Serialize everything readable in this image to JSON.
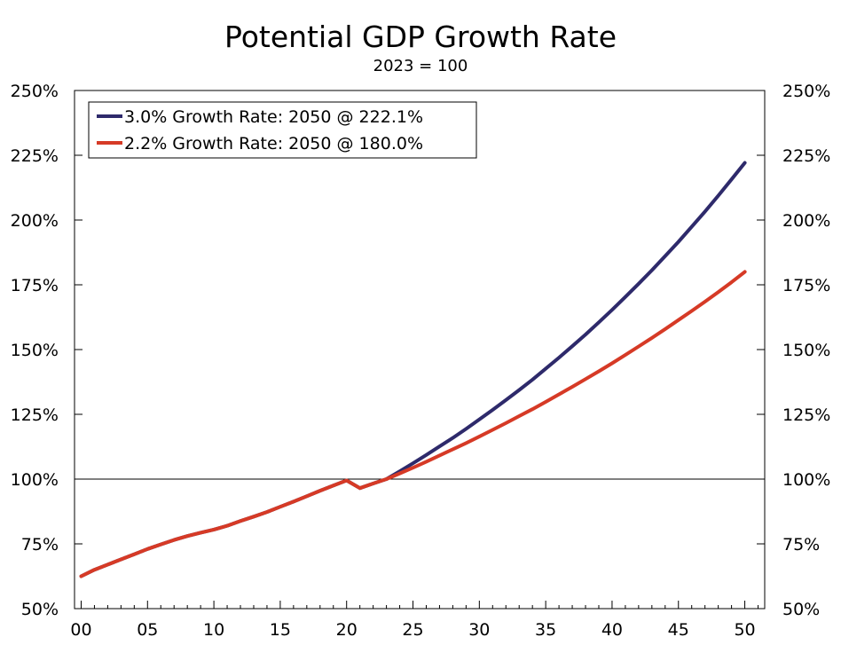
{
  "chart_data": {
    "type": "line",
    "title": "Potential GDP Growth Rate",
    "subtitle": "2023 = 100",
    "xlabel": "",
    "ylabel": "",
    "x_tick_labels": [
      "00",
      "05",
      "10",
      "15",
      "20",
      "25",
      "30",
      "35",
      "40",
      "45",
      "50"
    ],
    "x_ticks": [
      2000,
      2005,
      2010,
      2015,
      2020,
      2025,
      2030,
      2035,
      2040,
      2045,
      2050
    ],
    "xlim": [
      1999.5,
      2051.5
    ],
    "ylim": [
      50,
      250
    ],
    "y_ticks": [
      50,
      75,
      100,
      125,
      150,
      175,
      200,
      225,
      250
    ],
    "y_tick_labels": [
      "50%",
      "75%",
      "100%",
      "125%",
      "150%",
      "175%",
      "200%",
      "225%",
      "250%"
    ],
    "y_axis_both_sides": true,
    "reference_line": 100,
    "grid": false,
    "legend_position": "top-left",
    "series": [
      {
        "name": "3.0% Growth Rate: 2050 @ 222.1%",
        "color": "#2e2a6b",
        "x": [
          2000,
          2001,
          2002,
          2003,
          2004,
          2005,
          2006,
          2007,
          2008,
          2009,
          2010,
          2011,
          2012,
          2013,
          2014,
          2015,
          2016,
          2017,
          2018,
          2019,
          2020,
          2021,
          2022,
          2023,
          2024,
          2025,
          2026,
          2027,
          2028,
          2029,
          2030,
          2031,
          2032,
          2033,
          2034,
          2035,
          2036,
          2037,
          2038,
          2039,
          2040,
          2041,
          2042,
          2043,
          2044,
          2045,
          2046,
          2047,
          2048,
          2049,
          2050
        ],
        "values": [
          62.5,
          65,
          67,
          69,
          71,
          73,
          74.8,
          76.5,
          78,
          79.3,
          80.5,
          82,
          83.8,
          85.5,
          87.3,
          89.3,
          91.3,
          93.4,
          95.5,
          97.5,
          99.5,
          96.5,
          98.3,
          100,
          103,
          106.1,
          109.3,
          112.6,
          115.9,
          119.4,
          123,
          126.7,
          130.5,
          134.4,
          138.4,
          142.6,
          146.9,
          151.3,
          155.8,
          160.5,
          165.3,
          170.3,
          175.4,
          180.6,
          186.1,
          191.6,
          197.4,
          203.3,
          209.4,
          215.7,
          222.1
        ]
      },
      {
        "name": "2.2% Growth Rate: 2050 @ 180.0%",
        "color": "#d63a26",
        "x": [
          2000,
          2001,
          2002,
          2003,
          2004,
          2005,
          2006,
          2007,
          2008,
          2009,
          2010,
          2011,
          2012,
          2013,
          2014,
          2015,
          2016,
          2017,
          2018,
          2019,
          2020,
          2021,
          2022,
          2023,
          2024,
          2025,
          2026,
          2027,
          2028,
          2029,
          2030,
          2031,
          2032,
          2033,
          2034,
          2035,
          2036,
          2037,
          2038,
          2039,
          2040,
          2041,
          2042,
          2043,
          2044,
          2045,
          2046,
          2047,
          2048,
          2049,
          2050
        ],
        "values": [
          62.5,
          65,
          67,
          69,
          71,
          73,
          74.8,
          76.5,
          78,
          79.3,
          80.5,
          82,
          83.8,
          85.5,
          87.3,
          89.3,
          91.3,
          93.4,
          95.5,
          97.5,
          99.5,
          96.5,
          98.3,
          100,
          102.2,
          104.4,
          106.7,
          109.1,
          111.5,
          113.9,
          116.4,
          119,
          121.6,
          124.3,
          127,
          129.8,
          132.7,
          135.6,
          138.6,
          141.6,
          144.7,
          147.9,
          151.2,
          154.5,
          157.9,
          161.4,
          164.9,
          168.5,
          172.2,
          176,
          180
        ]
      }
    ]
  }
}
